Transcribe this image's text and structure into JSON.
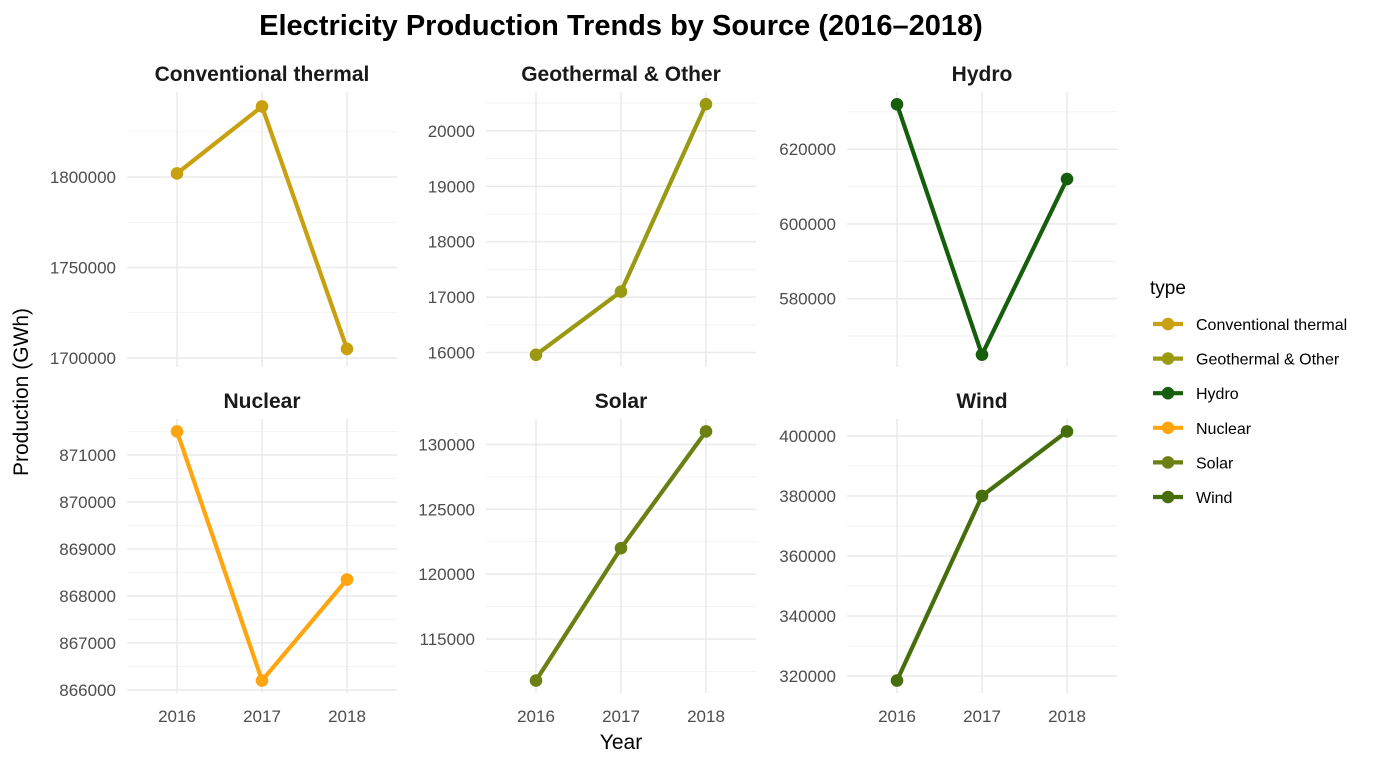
{
  "chart_data": {
    "type": "line",
    "title": "Electricity Production Trends by Source (2016–2018)",
    "xlabel": "Year",
    "ylabel": "Production (GWh)",
    "legend": {
      "title": "type",
      "placement": "right"
    },
    "x": [
      2016,
      2017,
      2018
    ],
    "facets": [
      {
        "name": "Conventional thermal",
        "color": "#C9A00F",
        "values": [
          1802000,
          1839000,
          1705000
        ],
        "ylim": [
          1695000,
          1847000
        ],
        "yticks": [
          1700000,
          1750000,
          1800000
        ],
        "yticklabels": [
          "1700000",
          "1750000",
          "1800000"
        ]
      },
      {
        "name": "Geothermal & Other",
        "color": "#9A9A12",
        "values": [
          15960,
          17100,
          20480
        ],
        "ylim": [
          15740,
          20700
        ],
        "yticks": [
          16000,
          17000,
          18000,
          19000,
          20000
        ],
        "yticklabels": [
          "16000",
          "17000",
          "18000",
          "19000",
          "20000"
        ]
      },
      {
        "name": "Hydro",
        "color": "#145E0C",
        "values": [
          632000,
          565000,
          612000
        ],
        "ylim": [
          561700,
          635300
        ],
        "yticks": [
          580000,
          600000,
          620000
        ],
        "yticklabels": [
          "580000",
          "600000",
          "620000"
        ]
      },
      {
        "name": "Nuclear",
        "color": "#FFA50F",
        "values": [
          871500,
          866200,
          868350
        ],
        "ylim": [
          865935,
          871765
        ],
        "yticks": [
          866000,
          867000,
          868000,
          869000,
          870000,
          871000
        ],
        "yticklabels": [
          "866000",
          "867000",
          "868000",
          "869000",
          "870000",
          "871000"
        ]
      },
      {
        "name": "Solar",
        "color": "#6B8012",
        "values": [
          111800,
          122000,
          131000
        ],
        "ylim": [
          110840,
          131960
        ],
        "yticks": [
          115000,
          120000,
          125000,
          130000
        ],
        "yticklabels": [
          "115000",
          "120000",
          "125000",
          "130000"
        ]
      },
      {
        "name": "Wind",
        "color": "#476E0C",
        "values": [
          318500,
          380000,
          401500
        ],
        "ylim": [
          314350,
          405650
        ],
        "yticks": [
          320000,
          340000,
          360000,
          380000,
          400000
        ],
        "yticklabels": [
          "320000",
          "340000",
          "360000",
          "380000",
          "400000"
        ]
      }
    ],
    "xticklabels": [
      "2016",
      "2017",
      "2018"
    ],
    "grid": true
  }
}
